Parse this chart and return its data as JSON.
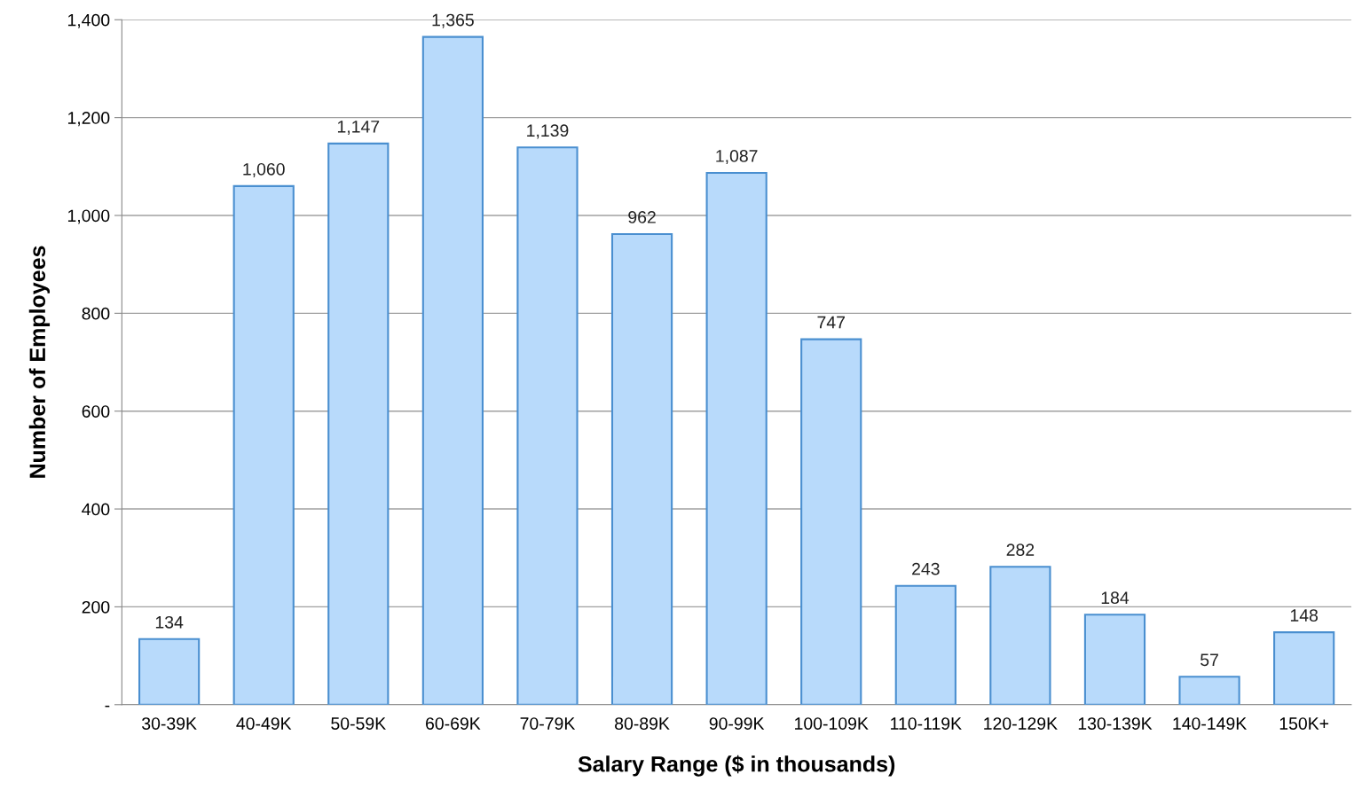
{
  "chart_data": {
    "type": "bar",
    "xlabel": "Salary Range ($ in thousands)",
    "ylabel": "Number of Employees",
    "categories": [
      "30-39K",
      "40-49K",
      "50-59K",
      "60-69K",
      "70-79K",
      "80-89K",
      "90-99K",
      "100-109K",
      "110-119K",
      "120-129K",
      "130-139K",
      "140-149K",
      "150K+"
    ],
    "values": [
      134,
      1060,
      1147,
      1365,
      1139,
      962,
      1087,
      747,
      243,
      282,
      184,
      57,
      148
    ],
    "value_labels": [
      "134",
      "1,060",
      "1,147",
      "1,365",
      "1,139",
      "962",
      "1,087",
      "747",
      "243",
      "282",
      "184",
      "57",
      "148"
    ],
    "color": "#b8dafb",
    "ylim": [
      0,
      1400
    ],
    "yticks": [
      {
        "value": 0,
        "label": "-"
      },
      200,
      400,
      600,
      800,
      {
        "value": 1000,
        "label": "1,000"
      },
      {
        "value": 1200,
        "label": "1,200"
      },
      {
        "value": 1400,
        "label": "1,400"
      }
    ],
    "grid": "y"
  }
}
